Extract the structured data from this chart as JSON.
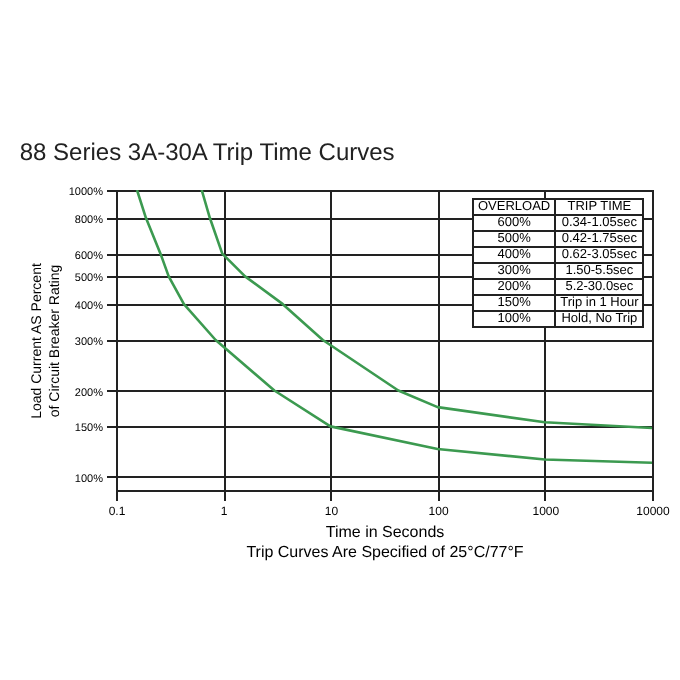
{
  "chart_data": {
    "type": "line",
    "title": "88 Series 3A-30A Trip Time Curves",
    "xlabel": "Time in Seconds",
    "ylabel": "Load Current AS Percent of Circuit Breaker Rating",
    "annotations": [
      "OVERLOAD",
      "TRIP TIME",
      "600%",
      "0.34-1.05sec",
      "500%",
      "0.42-1.75sec",
      "400%",
      "0.62-3.05sec",
      "300%",
      "1.50-5.5sec",
      "200%",
      "5.2-30.0sec",
      "150%",
      "Trip in 1 Hour",
      "100%",
      "Hold, No Trip",
      "Trip Curves Are Specified of 25°C/77°F"
    ],
    "log": "xy",
    "xlim": [
      0.1,
      10000
    ],
    "xticks": [
      0.1,
      1,
      10,
      100,
      1000,
      10000
    ],
    "ylim": [
      90,
      1000
    ],
    "yticks": [
      {
        "value": 100,
        "label": "100%"
      },
      {
        "value": 150,
        "label": "150%"
      },
      {
        "value": 200,
        "label": "200%"
      },
      {
        "value": 300,
        "label": "300%"
      },
      {
        "value": 400,
        "label": "400%"
      },
      {
        "value": 500,
        "label": "500%"
      },
      {
        "value": 600,
        "label": "600%"
      },
      {
        "value": 800,
        "label": "800%"
      },
      {
        "value": 1000,
        "label": "1000%"
      }
    ],
    "series": [
      {
        "color": "#3c9a50",
        "x": [
          0.157,
          0.19,
          0.26,
          0.31,
          0.43,
          0.85,
          3,
          10,
          100,
          1000,
          10000
        ],
        "values": [
          1000,
          800,
          600,
          500,
          400,
          300,
          200,
          150,
          125,
          115,
          112
        ]
      },
      {
        "color": "#3c9a50",
        "x": [
          0.63,
          0.75,
          0.98,
          1.6,
          3.6,
          8.5,
          43,
          100,
          1000,
          10000
        ],
        "values": [
          1000,
          800,
          600,
          500,
          400,
          300,
          200,
          175,
          155,
          148
        ]
      }
    ],
    "marker": "none",
    "line_style": "solid",
    "grid": true
  }
}
